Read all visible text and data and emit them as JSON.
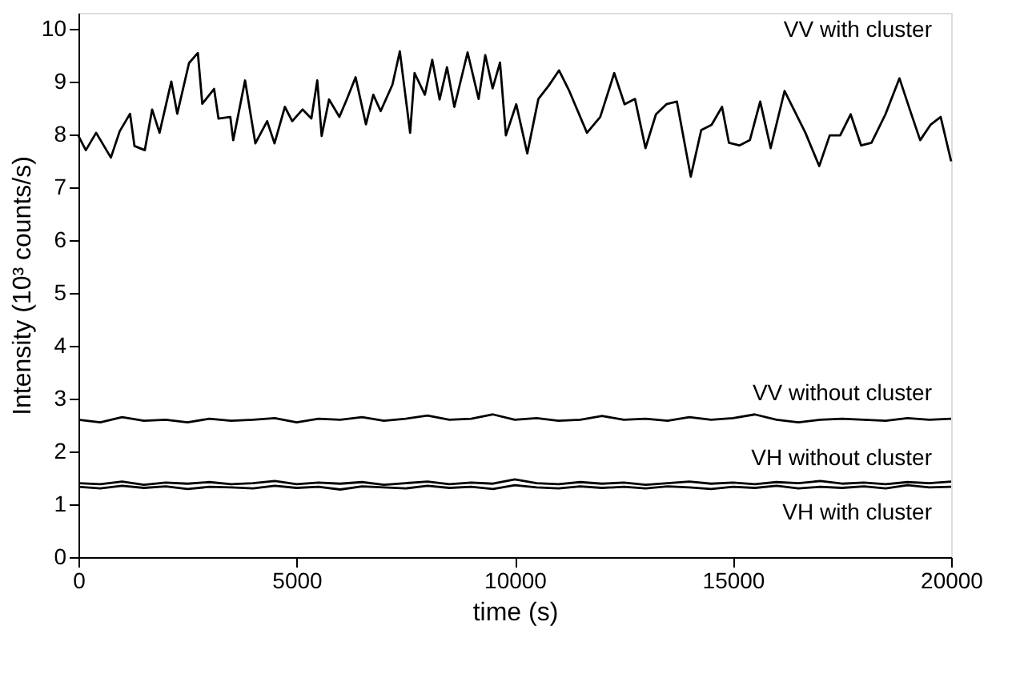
{
  "chart_data": {
    "type": "line",
    "xlabel": "time (s)",
    "ylabel": "Intensity (10³ counts/s)",
    "xlim": [
      0,
      20000
    ],
    "ylim": [
      0,
      10.3
    ],
    "xticks": [
      0,
      5000,
      10000,
      15000,
      20000
    ],
    "yticks": [
      0,
      1,
      2,
      3,
      4,
      5,
      6,
      7,
      8,
      9,
      10
    ],
    "grid": false,
    "marker": "none",
    "line_style": "solid",
    "series": [
      {
        "name": "VV with cluster",
        "color": "#000000",
        "x": [
          0,
          169,
          405,
          743,
          946,
          1182,
          1284,
          1520,
          1689,
          1858,
          2128,
          2264,
          2534,
          2736,
          2838,
          3108,
          3209,
          3480,
          3547,
          3818,
          4054,
          4324,
          4493,
          4730,
          4899,
          5135,
          5338,
          5473,
          5574,
          5743,
          5980,
          6149,
          6351,
          6588,
          6757,
          6926,
          7196,
          7365,
          7601,
          7703,
          7939,
          8108,
          8277,
          8446,
          8615,
          8918,
          9171,
          9323,
          9492,
          9661,
          9796,
          10033,
          10286,
          10540,
          10776,
          11013,
          11249,
          11654,
          11958,
          12279,
          12516,
          12755,
          12995,
          13235,
          13475,
          13715,
          14033,
          14273,
          14509,
          14749,
          14908,
          15147,
          15387,
          15624,
          15864,
          16182,
          16418,
          16660,
          16977,
          17217,
          17457,
          17697,
          17937,
          18174,
          18495,
          18816,
          19053,
          19290,
          19527,
          19760,
          20000
        ],
        "values": [
          7.97,
          7.7,
          8.03,
          7.56,
          8.06,
          8.39,
          7.78,
          7.7,
          8.47,
          8.03,
          9.0,
          8.39,
          9.35,
          9.54,
          8.58,
          8.86,
          8.3,
          8.33,
          7.89,
          9.02,
          7.83,
          8.25,
          7.83,
          8.52,
          8.25,
          8.47,
          8.3,
          9.02,
          7.97,
          8.66,
          8.33,
          8.66,
          9.08,
          8.19,
          8.75,
          8.44,
          8.94,
          9.57,
          8.03,
          9.16,
          8.75,
          9.41,
          8.66,
          9.27,
          8.52,
          9.55,
          8.67,
          9.5,
          8.87,
          9.36,
          7.98,
          8.57,
          7.64,
          8.67,
          8.92,
          9.21,
          8.82,
          8.03,
          8.33,
          9.16,
          8.57,
          8.67,
          7.74,
          8.38,
          8.57,
          8.62,
          7.2,
          8.08,
          8.18,
          8.52,
          7.84,
          7.79,
          7.89,
          8.62,
          7.74,
          8.82,
          8.43,
          8.03,
          7.4,
          7.98,
          7.98,
          8.38,
          7.79,
          7.84,
          8.38,
          9.06,
          8.47,
          7.89,
          8.18,
          8.33,
          7.49
        ]
      },
      {
        "color": "#000000",
        "x": [
          0,
          500,
          1000,
          1500,
          2000,
          2500,
          3000,
          3500,
          4000,
          4500,
          5000,
          5500,
          6000,
          6500,
          7000,
          7500,
          8000,
          8500,
          9000,
          9500,
          10000,
          10500,
          11000,
          11500,
          12000,
          12500,
          13000,
          13500,
          14000,
          14500,
          15000,
          15500,
          16000,
          16500,
          17000,
          17500,
          18000,
          18500,
          19000,
          19500,
          20000
        ],
        "name": "VV without cluster",
        "values": [
          2.6,
          2.55,
          2.65,
          2.58,
          2.6,
          2.55,
          2.62,
          2.58,
          2.6,
          2.63,
          2.55,
          2.62,
          2.6,
          2.65,
          2.58,
          2.62,
          2.68,
          2.6,
          2.62,
          2.7,
          2.6,
          2.63,
          2.58,
          2.6,
          2.67,
          2.6,
          2.62,
          2.58,
          2.65,
          2.6,
          2.63,
          2.7,
          2.6,
          2.55,
          2.6,
          2.62,
          2.6,
          2.58,
          2.63,
          2.6,
          2.62
        ]
      },
      {
        "color": "#000000",
        "x": [
          0,
          500,
          1000,
          1500,
          2000,
          2500,
          3000,
          3500,
          4000,
          4500,
          5000,
          5500,
          6000,
          6500,
          7000,
          7500,
          8000,
          8500,
          9000,
          9500,
          10000,
          10500,
          11000,
          11500,
          12000,
          12500,
          13000,
          13500,
          14000,
          14500,
          15000,
          15500,
          16000,
          16500,
          17000,
          17500,
          18000,
          18500,
          19000,
          19500,
          20000
        ],
        "name": "VH without cluster",
        "values": [
          1.4,
          1.38,
          1.43,
          1.37,
          1.41,
          1.39,
          1.42,
          1.38,
          1.4,
          1.44,
          1.38,
          1.41,
          1.39,
          1.42,
          1.37,
          1.4,
          1.43,
          1.38,
          1.41,
          1.39,
          1.47,
          1.4,
          1.38,
          1.42,
          1.39,
          1.41,
          1.37,
          1.4,
          1.43,
          1.39,
          1.41,
          1.38,
          1.42,
          1.4,
          1.44,
          1.39,
          1.41,
          1.38,
          1.42,
          1.4,
          1.43
        ]
      },
      {
        "color": "#000000",
        "x": [
          0,
          500,
          1000,
          1500,
          2000,
          2500,
          3000,
          3500,
          4000,
          4500,
          5000,
          5500,
          6000,
          6500,
          7000,
          7500,
          8000,
          8500,
          9000,
          9500,
          10000,
          10500,
          11000,
          11500,
          12000,
          12500,
          13000,
          13500,
          14000,
          14500,
          15000,
          15500,
          16000,
          16500,
          17000,
          17500,
          18000,
          18500,
          19000,
          19500,
          20000
        ],
        "name": "VH with cluster",
        "values": [
          1.33,
          1.3,
          1.35,
          1.31,
          1.34,
          1.29,
          1.33,
          1.32,
          1.3,
          1.35,
          1.31,
          1.33,
          1.28,
          1.34,
          1.32,
          1.3,
          1.35,
          1.31,
          1.33,
          1.29,
          1.36,
          1.32,
          1.3,
          1.34,
          1.31,
          1.33,
          1.3,
          1.34,
          1.32,
          1.29,
          1.33,
          1.31,
          1.35,
          1.3,
          1.33,
          1.31,
          1.34,
          1.3,
          1.36,
          1.32,
          1.33
        ]
      }
    ]
  }
}
